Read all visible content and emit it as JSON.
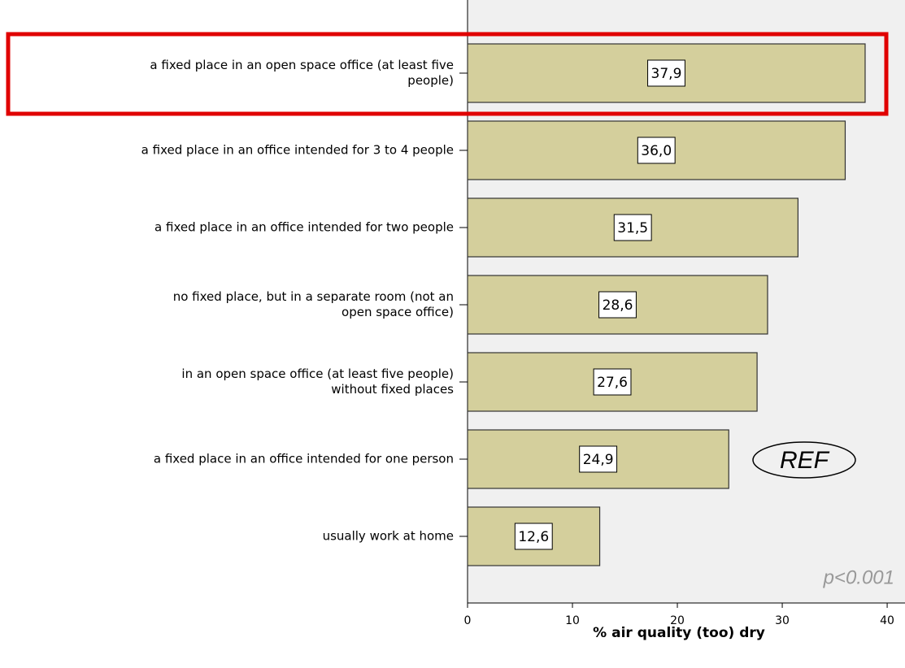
{
  "chart_data": {
    "type": "bar",
    "orientation": "horizontal",
    "categories": [
      "a fixed place in an open space office (at least five\npeople)",
      "a fixed place in an office intended for 3 to 4 people",
      "a fixed place in an office intended for two people",
      "no fixed place, but in a separate room (not an\nopen space office)",
      "in an open space office (at least five people)\nwithout fixed places",
      "a fixed place in an office intended for one person",
      "usually work at home"
    ],
    "values": [
      37.9,
      36.0,
      31.5,
      28.6,
      27.6,
      24.9,
      12.6
    ],
    "value_labels": [
      "37,9",
      "36,0",
      "31,5",
      "28,6",
      "27,6",
      "24,9",
      "12,6"
    ],
    "color": "#d4cf9c",
    "xlabel": "% air quality (too) dry",
    "xlim": [
      0,
      41.7
    ],
    "xticks": [
      0,
      10,
      20,
      30,
      40
    ],
    "annotations": [
      "REF",
      "p<0.001"
    ]
  }
}
